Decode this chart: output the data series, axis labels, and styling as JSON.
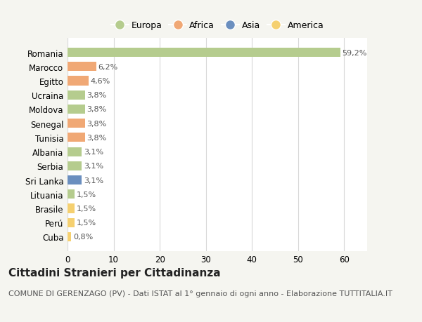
{
  "countries": [
    "Romania",
    "Marocco",
    "Egitto",
    "Ucraina",
    "Moldova",
    "Senegal",
    "Tunisia",
    "Albania",
    "Serbia",
    "Sri Lanka",
    "Lituania",
    "Brasile",
    "Perú",
    "Cuba"
  ],
  "values": [
    59.2,
    6.2,
    4.6,
    3.8,
    3.8,
    3.8,
    3.8,
    3.1,
    3.1,
    3.1,
    1.5,
    1.5,
    1.5,
    0.8
  ],
  "labels": [
    "59,2%",
    "6,2%",
    "4,6%",
    "3,8%",
    "3,8%",
    "3,8%",
    "3,8%",
    "3,1%",
    "3,1%",
    "3,1%",
    "1,5%",
    "1,5%",
    "1,5%",
    "0,8%"
  ],
  "colors": [
    "#b5cc8e",
    "#f0a875",
    "#f0a875",
    "#b5cc8e",
    "#b5cc8e",
    "#f0a875",
    "#f0a875",
    "#b5cc8e",
    "#b5cc8e",
    "#6b8fbf",
    "#b5cc8e",
    "#f5d070",
    "#f5d070",
    "#f5d070"
  ],
  "legend": {
    "labels": [
      "Europa",
      "Africa",
      "Asia",
      "America"
    ],
    "colors": [
      "#b5cc8e",
      "#f0a875",
      "#6b8fbf",
      "#f5d070"
    ]
  },
  "xlim": [
    0,
    65
  ],
  "xticks": [
    0,
    10,
    20,
    30,
    40,
    50,
    60
  ],
  "title": "Cittadini Stranieri per Cittadinanza",
  "subtitle": "COMUNE DI GERENZAGO (PV) - Dati ISTAT al 1° gennaio di ogni anno - Elaborazione TUTTITALIA.IT",
  "bg_color": "#f5f5f0",
  "bar_bg_color": "#ffffff",
  "grid_color": "#d8d8d8",
  "title_fontsize": 11,
  "subtitle_fontsize": 8,
  "label_fontsize": 8,
  "tick_fontsize": 8.5
}
